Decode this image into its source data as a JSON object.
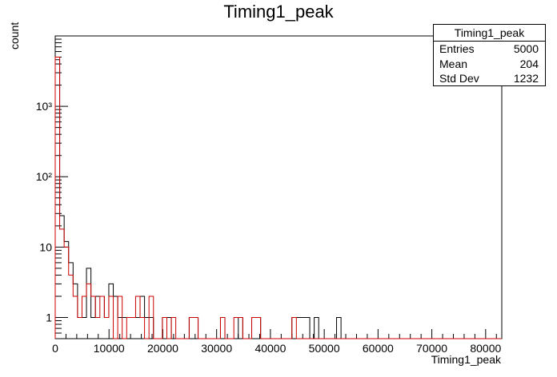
{
  "chart_data": {
    "type": "histogram",
    "title": "Timing1_peak",
    "xlabel": "Timing1_peak",
    "ylabel": "count",
    "xlim": [
      0,
      83000
    ],
    "ylim": [
      0.5,
      10000
    ],
    "log_y": true,
    "bin_width": 830,
    "x_ticks": [
      0,
      10000,
      20000,
      30000,
      40000,
      50000,
      60000,
      70000,
      80000
    ],
    "x_tick_labels": [
      "0",
      "10000",
      "20000",
      "30000",
      "40000",
      "50000",
      "60000",
      "70000",
      "80000"
    ],
    "y_ticks": [
      1,
      10,
      100,
      1000
    ],
    "y_tick_labels": [
      "1",
      "10",
      "10²",
      "10³"
    ],
    "series": [
      {
        "color": "#000000",
        "bins": [
          [
            0,
            4600
          ],
          [
            1,
            28
          ],
          [
            2,
            12
          ],
          [
            3,
            6
          ],
          [
            4,
            3
          ],
          [
            5,
            1
          ],
          [
            6,
            1
          ],
          [
            7,
            5
          ],
          [
            8,
            1
          ],
          [
            9,
            2
          ],
          [
            10,
            2
          ],
          [
            11,
            1
          ],
          [
            12,
            3
          ],
          [
            13,
            2
          ],
          [
            14,
            1
          ],
          [
            15,
            1
          ],
          [
            16,
            1
          ],
          [
            17,
            1
          ],
          [
            18,
            1
          ],
          [
            19,
            2
          ],
          [
            20,
            1
          ],
          [
            21,
            1
          ],
          [
            24,
            1
          ],
          [
            25,
            1
          ],
          [
            30,
            1
          ],
          [
            31,
            1
          ],
          [
            37,
            1
          ],
          [
            41,
            1
          ],
          [
            44,
            1
          ],
          [
            45,
            1
          ],
          [
            53,
            1
          ],
          [
            54,
            1
          ],
          [
            55,
            1
          ],
          [
            56,
            1
          ],
          [
            58,
            1
          ],
          [
            63,
            1
          ]
        ]
      },
      {
        "color": "#cc0000",
        "bins": [
          [
            0,
            5000
          ],
          [
            1,
            18
          ],
          [
            2,
            10
          ],
          [
            3,
            4
          ],
          [
            4,
            2
          ],
          [
            5,
            1
          ],
          [
            6,
            2
          ],
          [
            7,
            3
          ],
          [
            8,
            2
          ],
          [
            9,
            1
          ],
          [
            10,
            2
          ],
          [
            11,
            1
          ],
          [
            12,
            2
          ],
          [
            14,
            2
          ],
          [
            16,
            1
          ],
          [
            17,
            1
          ],
          [
            18,
            2
          ],
          [
            19,
            1
          ],
          [
            21,
            2
          ],
          [
            24,
            1
          ],
          [
            26,
            1
          ],
          [
            30,
            1
          ],
          [
            31,
            1
          ],
          [
            37,
            1
          ],
          [
            40,
            1
          ],
          [
            41,
            1
          ],
          [
            44,
            1
          ],
          [
            45,
            1
          ],
          [
            53,
            1
          ]
        ]
      }
    ]
  },
  "stats_box": {
    "title": "Timing1_peak",
    "rows": [
      {
        "label": "Entries",
        "value": "5000"
      },
      {
        "label": "Mean",
        "value": "204"
      },
      {
        "label": "Std Dev",
        "value": "1232"
      }
    ]
  }
}
